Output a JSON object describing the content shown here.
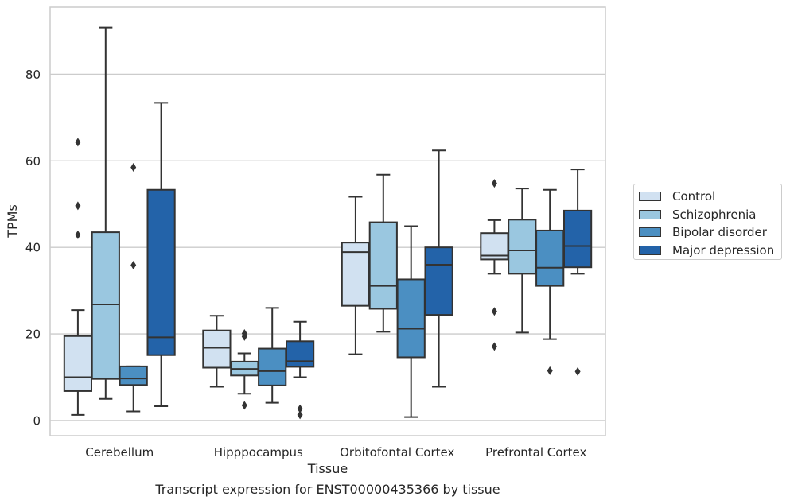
{
  "caption": "Transcript expression for ENST00000435366 by tissue",
  "colors": {
    "Control": "#d1e1f1",
    "Schizophrenia": "#9ac7e0",
    "Bipolar disorder": "#4b8fc2",
    "Major depression": "#2363a9",
    "grid": "#cccccc",
    "line": "#333333"
  },
  "legend": {
    "placement": "right, outside plot",
    "items": [
      "Control",
      "Schizophrenia",
      "Bipolar disorder",
      "Major depression"
    ]
  },
  "chart_data": {
    "type": "box",
    "title": "",
    "xlabel": "Tissue",
    "ylabel": "TPMs",
    "ylim": [
      -3.5,
      95.5
    ],
    "yticks": [
      0,
      20,
      40,
      60,
      80
    ],
    "grid": "horizontal",
    "categories": [
      "Cerebellum",
      "Hipppocampus",
      "Orbitofontal Cortex",
      "Prefrontal Cortex"
    ],
    "series": [
      {
        "name": "Control",
        "boxes": [
          {
            "whislo": 1.3,
            "q1": 6.8,
            "med": 10.0,
            "q3": 19.5,
            "whishi": 25.5,
            "fliers": [
              64.3,
              49.6,
              42.9
            ]
          },
          {
            "whislo": 7.8,
            "q1": 12.2,
            "med": 16.8,
            "q3": 20.8,
            "whishi": 24.2,
            "fliers": []
          },
          {
            "whislo": 15.3,
            "q1": 26.5,
            "med": 38.9,
            "q3": 41.1,
            "whishi": 51.7,
            "fliers": []
          },
          {
            "whislo": 33.9,
            "q1": 37.2,
            "med": 38.1,
            "q3": 43.3,
            "whishi": 46.3,
            "fliers": [
              54.8,
              25.2,
              17.1
            ]
          }
        ]
      },
      {
        "name": "Schizophrenia",
        "boxes": [
          {
            "whislo": 5.0,
            "q1": 9.6,
            "med": 26.8,
            "q3": 43.5,
            "whishi": 90.8,
            "fliers": []
          },
          {
            "whislo": 6.2,
            "q1": 10.4,
            "med": 11.9,
            "q3": 13.6,
            "whishi": 15.5,
            "fliers": [
              20.1,
              19.4,
              3.5
            ]
          },
          {
            "whislo": 20.5,
            "q1": 25.8,
            "med": 31.1,
            "q3": 45.8,
            "whishi": 56.8,
            "fliers": []
          },
          {
            "whislo": 20.3,
            "q1": 33.9,
            "med": 39.3,
            "q3": 46.4,
            "whishi": 53.6,
            "fliers": []
          }
        ]
      },
      {
        "name": "Bipolar disorder",
        "boxes": [
          {
            "whislo": 2.1,
            "q1": 8.2,
            "med": 9.7,
            "q3": 12.5,
            "whishi": 12.5,
            "fliers": [
              58.5,
              35.9
            ]
          },
          {
            "whislo": 4.1,
            "q1": 8.1,
            "med": 11.4,
            "q3": 16.6,
            "whishi": 26.0,
            "fliers": []
          },
          {
            "whislo": 0.8,
            "q1": 14.6,
            "med": 21.2,
            "q3": 32.6,
            "whishi": 44.9,
            "fliers": []
          },
          {
            "whislo": 18.8,
            "q1": 31.1,
            "med": 35.3,
            "q3": 43.9,
            "whishi": 53.3,
            "fliers": [
              11.5
            ]
          }
        ]
      },
      {
        "name": "Major depression",
        "boxes": [
          {
            "whislo": 3.3,
            "q1": 15.1,
            "med": 19.2,
            "q3": 53.3,
            "whishi": 73.4,
            "fliers": []
          },
          {
            "whislo": 10.0,
            "q1": 12.4,
            "med": 13.7,
            "q3": 18.3,
            "whishi": 22.8,
            "fliers": [
              2.7,
              1.3
            ]
          },
          {
            "whislo": 7.8,
            "q1": 24.4,
            "med": 36.0,
            "q3": 40.0,
            "whishi": 62.4,
            "fliers": []
          },
          {
            "whislo": 33.9,
            "q1": 35.4,
            "med": 40.3,
            "q3": 48.5,
            "whishi": 58.0,
            "fliers": [
              11.3
            ]
          }
        ]
      }
    ]
  }
}
